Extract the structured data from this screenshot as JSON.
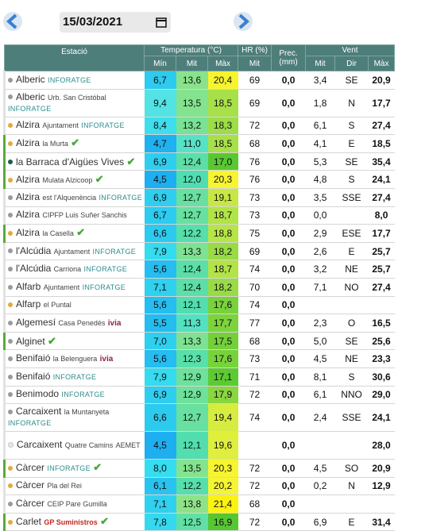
{
  "date": "15/03/2021",
  "table": {
    "headers": {
      "station": "Estació",
      "temperature": "Temperatura (°C)",
      "humidity": "HR (%)",
      "precipitation": "Prec. (mm)",
      "wind": "Vent",
      "temp_min": "Mín",
      "temp_mit": "Mit",
      "temp_max": "Màx",
      "hr_mit": "Mit",
      "wind_mit": "Mit",
      "wind_dir": "Dir",
      "wind_max": "Màx"
    },
    "rows": [
      {
        "place": "Alberic",
        "source": "INFORATGE",
        "dot": "#9a9a9a",
        "values": [
          "6,7",
          "13,6",
          "20,4",
          "69",
          "0,0",
          "3,4",
          "SE",
          "20,9"
        ]
      },
      {
        "place": "Alberic",
        "detail": "Urb. San Cristóbal",
        "source": "INFORATGE",
        "dot": "#9a9a9a",
        "tall": true,
        "values": [
          "9,4",
          "13,5",
          "18,5",
          "69",
          "0,0",
          "1,8",
          "N",
          "17,7"
        ]
      },
      {
        "place": "Alzira",
        "detail": "Ajuntament",
        "source": "INFORATGE",
        "dot": "#e8a838",
        "values": [
          "8,4",
          "13,2",
          "18,3",
          "72",
          "0,0",
          "6,1",
          "S",
          "27,4"
        ]
      },
      {
        "place": "Alzira",
        "detail": "la Murta",
        "check": true,
        "dot": "#e8a838",
        "values": [
          "4,7",
          "11,0",
          "18,5",
          "68",
          "0,0",
          "4,1",
          "E",
          "18,5"
        ]
      },
      {
        "place": "la Barraca d'Aigües Vives",
        "check": true,
        "dot": "#1d5a48",
        "values": [
          "6,9",
          "12,4",
          "17,0",
          "76",
          "0,0",
          "5,3",
          "SE",
          "35,4"
        ]
      },
      {
        "place": "Alzira",
        "detail": "Mulata Alzicoop",
        "check": true,
        "dot": "#e8a838",
        "values": [
          "4,5",
          "12,0",
          "20,3",
          "76",
          "0,0",
          "4,8",
          "S",
          "24,1"
        ]
      },
      {
        "place": "Alzira",
        "detail": "est l'Alquenència",
        "source": "INFORATGE",
        "dot": "#9a9a9a",
        "values": [
          "6,9",
          "12,7",
          "19,1",
          "73",
          "0,0",
          "3,5",
          "SSE",
          "27,4"
        ]
      },
      {
        "place": "Alzira",
        "detail": "CIPFP Luis Suñer Sanchis",
        "dot": "#9a9a9a",
        "values": [
          "6,7",
          "12,7",
          "18,7",
          "73",
          "0,0",
          "0,0",
          null,
          "8,0"
        ]
      },
      {
        "place": "Alzira",
        "detail": "la Casella",
        "check": true,
        "dot": "#e8a838",
        "values": [
          "6,6",
          "12,2",
          "18,8",
          "75",
          "0,0",
          "2,9",
          "ESE",
          "17,7"
        ]
      },
      {
        "place": "l'Alcúdia",
        "detail": "Ajuntament",
        "source": "INFORATGE",
        "dot": "#9a9a9a",
        "values": [
          "7,9",
          "13,3",
          "18,2",
          "69",
          "0,0",
          "2,6",
          "E",
          "25,7"
        ]
      },
      {
        "place": "l'Alcúdia",
        "detail": "Carriona",
        "source": "INFORATGE",
        "dot": "#9a9a9a",
        "values": [
          "5,6",
          "12,4",
          "18,7",
          "74",
          "0,0",
          "3,2",
          "NE",
          "25,7"
        ]
      },
      {
        "place": "Alfarb",
        "detail": "Ajuntament",
        "source": "INFORATGE",
        "dot": "#9a9a9a",
        "values": [
          "7,1",
          "12,4",
          "18,2",
          "70",
          "0,0",
          "7,1",
          "NO",
          "27,4"
        ]
      },
      {
        "place": "Alfarp",
        "detail": "el Puntal",
        "dot": "#e8a838",
        "values": [
          "5,6",
          "12,1",
          "17,6",
          "74",
          "0,0",
          null,
          null,
          null
        ]
      },
      {
        "place": "Algemesí",
        "detail": "Casa Penedés",
        "source": "ivia",
        "dot": "#9a9a9a",
        "values": [
          "5,5",
          "11,3",
          "17,7",
          "77",
          "0,0",
          "2,3",
          "O",
          "16,5"
        ]
      },
      {
        "place": "Alginet",
        "check": true,
        "dot": "#9a9a9a",
        "values": [
          "7,0",
          "13,3",
          "17,5",
          "68",
          "0,0",
          "5,0",
          "SE",
          "25,6"
        ]
      },
      {
        "place": "Benifaió",
        "detail": "la Belenguera",
        "source": "ivia",
        "dot": "#9a9a9a",
        "values": [
          "5,6",
          "12,3",
          "17,6",
          "73",
          "0,0",
          "4,5",
          "NE",
          "23,3"
        ]
      },
      {
        "place": "Benifaió",
        "source": "INFORATGE",
        "dot": "#9a9a9a",
        "values": [
          "7,9",
          "12,9",
          "17,1",
          "71",
          "0,0",
          "8,1",
          "S",
          "30,6"
        ]
      },
      {
        "place": "Benimodo",
        "source": "INFORATGE",
        "dot": "#9a9a9a",
        "values": [
          "6,9",
          "12,9",
          "17,9",
          "72",
          "0,0",
          "6,1",
          "NNO",
          "29,0"
        ]
      },
      {
        "place": "Carcaixent",
        "detail": "la Muntanyeta",
        "source": "INFORATGE",
        "dot": "#9a9a9a",
        "tall": true,
        "values": [
          "6,6",
          "12,7",
          "19,4",
          "74",
          "0,0",
          "2,4",
          "SSE",
          "24,1"
        ]
      },
      {
        "place": "Carcaixent",
        "detail": "Quatre Camins",
        "source": "AEMET",
        "dot": "#e4e4e4",
        "tall": true,
        "values": [
          "4,5",
          "12,1",
          "19,6",
          null,
          "0,0",
          null,
          null,
          "28,0"
        ]
      },
      {
        "place": "Càrcer",
        "source": "INFORATGE",
        "check": true,
        "dot": "#e8a838",
        "values": [
          "8,0",
          "13,5",
          "20,3",
          "72",
          "0,0",
          "4,5",
          "SO",
          "20,9"
        ]
      },
      {
        "place": "Càrcer",
        "detail": "Pla del Rei",
        "dot": "#e8a838",
        "values": [
          "6,1",
          "12,2",
          "20,2",
          "72",
          "0,0",
          "0,2",
          "N",
          "12,9"
        ]
      },
      {
        "place": "Càrcer",
        "detail": "CEIP Pare Gumilla",
        "dot": "#9a9a9a",
        "values": [
          "7,1",
          "13,8",
          "21,4",
          "68",
          "0,0",
          null,
          null,
          null
        ]
      },
      {
        "place": "Carlet",
        "source": "GP Suministros",
        "check": true,
        "dot": "#e8a838",
        "values": [
          "7,8",
          "12,5",
          "16,9",
          "72",
          "0,0",
          "6,9",
          "E",
          "31,4"
        ]
      }
    ]
  }
}
